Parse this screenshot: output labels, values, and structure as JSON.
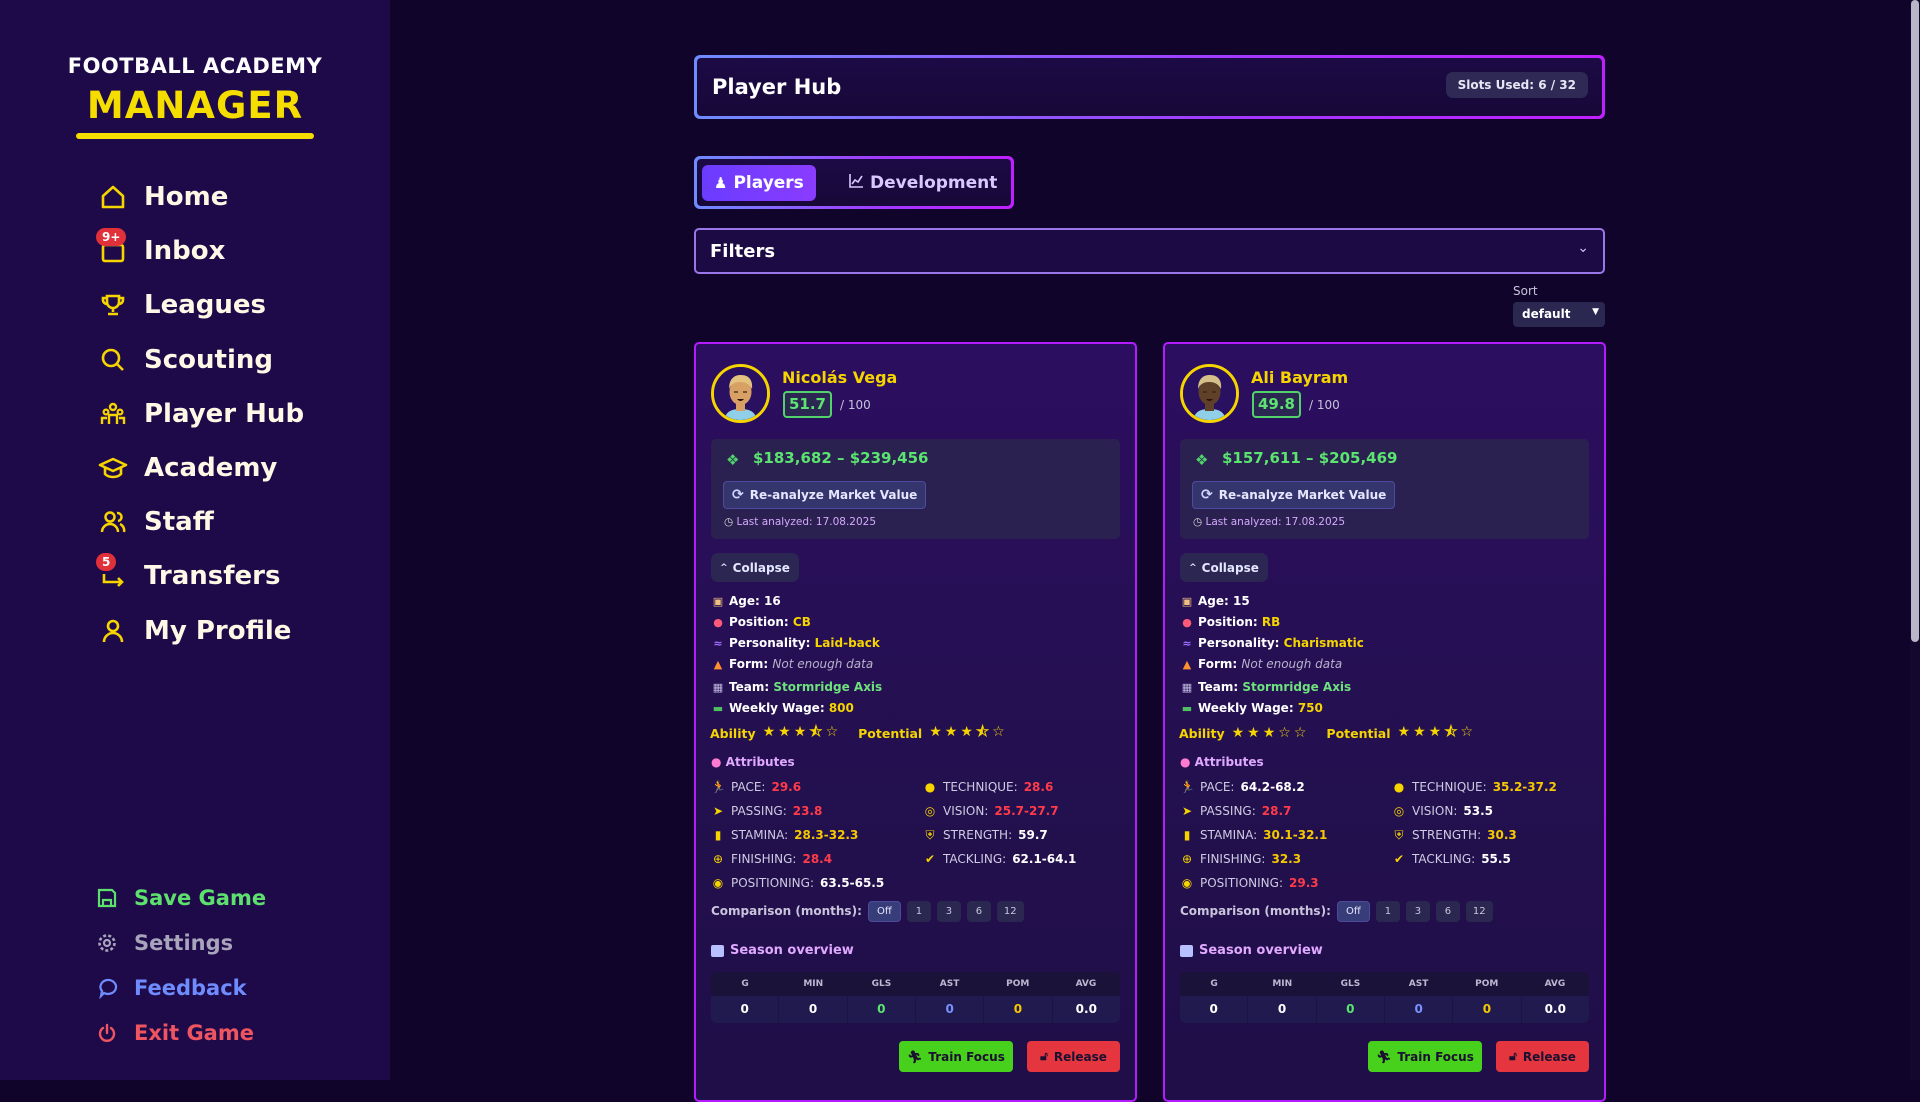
{
  "brand": {
    "line1": "FOOTBALL ACADEMY",
    "line2": "MANAGER",
    "color": "#f5dd00"
  },
  "sidebar": {
    "items": [
      {
        "label": "Home",
        "icon": "home-icon"
      },
      {
        "label": "Inbox",
        "icon": "inbox-icon",
        "badge": "9+"
      },
      {
        "label": "Leagues",
        "icon": "trophy-icon"
      },
      {
        "label": "Scouting",
        "icon": "search-icon"
      },
      {
        "label": "Player Hub",
        "icon": "players-icon"
      },
      {
        "label": "Academy",
        "icon": "graduation-cap-icon"
      },
      {
        "label": "Staff",
        "icon": "staff-icon"
      },
      {
        "label": "Transfers",
        "icon": "transfer-icon",
        "badge": "5"
      },
      {
        "label": "My Profile",
        "icon": "profile-icon"
      }
    ],
    "bottom": [
      {
        "label": "Save Game",
        "icon": "save-icon",
        "color": "#5ee06e"
      },
      {
        "label": "Settings",
        "icon": "gear-icon",
        "color": "#a8a4bc"
      },
      {
        "label": "Feedback",
        "icon": "chat-bubble-icon",
        "color": "#6f8cff"
      },
      {
        "label": "Exit Game",
        "icon": "power-icon",
        "color": "#ee5560"
      }
    ]
  },
  "header": {
    "title": "Player Hub",
    "slots": "Slots Used: 6 / 32"
  },
  "tabs": [
    {
      "label": "Players",
      "icon": "players-icon",
      "active": true
    },
    {
      "label": "Development",
      "icon": "chart-icon",
      "active": false
    }
  ],
  "filters": {
    "label": "Filters"
  },
  "sort": {
    "label": "Sort",
    "value": "default"
  },
  "card_labels": {
    "out_of": "/ 100",
    "reanalyze": "Re-analyze Market Value",
    "collapse": "Collapse",
    "age": "Age:",
    "position": "Position:",
    "personality": "Personality:",
    "form": "Form:",
    "team": "Team:",
    "wage": "Weekly Wage:",
    "ability": "Ability",
    "potential": "Potential",
    "attributes": "Attributes",
    "comparison": "Comparison (months):",
    "comparison_options": [
      "Off",
      "1",
      "3",
      "6",
      "12"
    ],
    "season": "Season overview",
    "season_cols": [
      "G",
      "MIN",
      "GLS",
      "AST",
      "POM",
      "AVG"
    ],
    "train": "Train Focus",
    "release": "Release"
  },
  "players": [
    {
      "name": "Nicolás Vega",
      "rating": "51.7",
      "market_value": "$183,682 – $239,456",
      "last_analyzed": "Last analyzed: 17.08.2025",
      "age": "16",
      "position": "CB",
      "personality": "Laid-back",
      "form": "Not enough data",
      "team": "Stormridge Axis",
      "wage": "800",
      "ability_stars": 3.5,
      "potential_stars": 3.5,
      "skin": "#d9a066",
      "hair": "#e2c27e",
      "attributes": [
        {
          "label": "PACE:",
          "value": "29.6",
          "tone": "low"
        },
        {
          "label": "TECHNIQUE:",
          "value": "28.6",
          "tone": "low"
        },
        {
          "label": "PASSING:",
          "value": "23.8",
          "tone": "low"
        },
        {
          "label": "VISION:",
          "value": "25.7-27.7",
          "tone": "low"
        },
        {
          "label": "STAMINA:",
          "value": "28.3-32.3",
          "tone": "mid"
        },
        {
          "label": "STRENGTH:",
          "value": "59.7",
          "tone": "high"
        },
        {
          "label": "FINISHING:",
          "value": "28.4",
          "tone": "low"
        },
        {
          "label": "TACKLING:",
          "value": "62.1-64.1",
          "tone": "high"
        },
        {
          "label": "POSITIONING:",
          "value": "63.5-65.5",
          "tone": "high"
        }
      ],
      "comparison_selected": "Off",
      "season": [
        "0",
        "0",
        "0",
        "0",
        "0",
        "0.0"
      ]
    },
    {
      "name": "Ali Bayram",
      "rating": "49.8",
      "market_value": "$157,611 – $205,469",
      "last_analyzed": "Last analyzed: 17.08.2025",
      "age": "15",
      "position": "RB",
      "personality": "Charismatic",
      "form": "Not enough data",
      "team": "Stormridge Axis",
      "wage": "750",
      "ability_stars": 3,
      "potential_stars": 3.5,
      "skin": "#5e4128",
      "hair": "#d6c08a",
      "attributes": [
        {
          "label": "PACE:",
          "value": "64.2-68.2",
          "tone": "high"
        },
        {
          "label": "TECHNIQUE:",
          "value": "35.2-37.2",
          "tone": "mid"
        },
        {
          "label": "PASSING:",
          "value": "28.7",
          "tone": "low"
        },
        {
          "label": "VISION:",
          "value": "53.5",
          "tone": "high"
        },
        {
          "label": "STAMINA:",
          "value": "30.1-32.1",
          "tone": "mid"
        },
        {
          "label": "STRENGTH:",
          "value": "30.3",
          "tone": "mid"
        },
        {
          "label": "FINISHING:",
          "value": "32.3",
          "tone": "mid"
        },
        {
          "label": "TACKLING:",
          "value": "55.5",
          "tone": "high"
        },
        {
          "label": "POSITIONING:",
          "value": "29.3",
          "tone": "low"
        }
      ],
      "comparison_selected": "Off",
      "season": [
        "0",
        "0",
        "0",
        "0",
        "0",
        "0.0"
      ]
    }
  ]
}
